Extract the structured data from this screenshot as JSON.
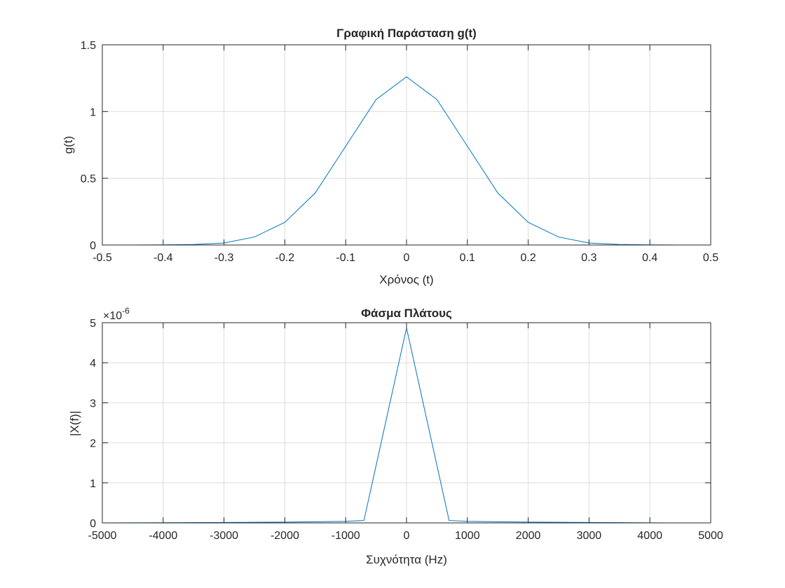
{
  "chart_data": [
    {
      "type": "line",
      "title": "Γραφική Παράσταση g(t)",
      "xlabel": "Χρόνος (t)",
      "ylabel": "g(t)",
      "xlim": [
        -0.5,
        0.5
      ],
      "ylim": [
        0,
        1.5
      ],
      "xticks": [
        "-0.5",
        "-0.4",
        "-0.3",
        "-0.2",
        "-0.1",
        "0",
        "0.1",
        "0.2",
        "0.3",
        "0.4",
        "0.5"
      ],
      "yticks": [
        "0",
        "0.5",
        "1",
        "1.5"
      ],
      "grid": true,
      "color": "#0072BD",
      "x": [
        -0.5,
        -0.45,
        -0.4,
        -0.35,
        -0.3,
        -0.25,
        -0.2,
        -0.15,
        -0.1,
        -0.05,
        0,
        0.05,
        0.1,
        0.15,
        0.2,
        0.25,
        0.3,
        0.35,
        0.4,
        0.45,
        0.5
      ],
      "y": [
        0.0,
        0.0,
        0.001,
        0.004,
        0.015,
        0.06,
        0.17,
        0.39,
        0.74,
        1.09,
        1.26,
        1.09,
        0.74,
        0.39,
        0.17,
        0.06,
        0.015,
        0.004,
        0.001,
        0.0,
        0.0
      ]
    },
    {
      "type": "line",
      "title": "Φάσμα Πλάτους",
      "xlabel": "Συχνότητα (Hz)",
      "ylabel": "|X(f)|",
      "xlim": [
        -5000,
        5000
      ],
      "ylim": [
        0,
        5
      ],
      "exponent_label": "×10",
      "exponent_power": "-6",
      "xticks": [
        "-5000",
        "-4000",
        "-3000",
        "-2000",
        "-1000",
        "0",
        "1000",
        "2000",
        "3000",
        "4000",
        "5000"
      ],
      "yticks": [
        "0",
        "1",
        "2",
        "3",
        "4",
        "5"
      ],
      "grid": true,
      "color": "#0072BD",
      "x": [
        -5000,
        -3000,
        -2000,
        -1000,
        -700,
        0,
        700,
        1000,
        2000,
        3000,
        4300
      ],
      "y": [
        0.0,
        0.01,
        0.02,
        0.04,
        0.06,
        4.87,
        0.06,
        0.04,
        0.02,
        0.01,
        0.0
      ]
    }
  ]
}
